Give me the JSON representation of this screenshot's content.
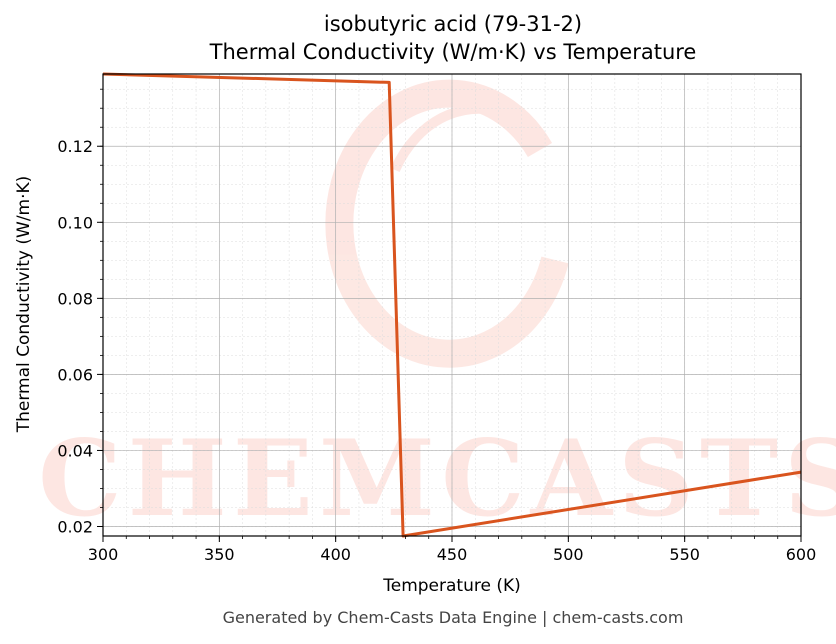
{
  "chart_data": {
    "type": "line",
    "title": "isobutyric acid (79-31-2)",
    "subtitle": "Thermal Conductivity (W/m·K) vs Temperature",
    "xlabel": "Temperature (K)",
    "ylabel": "Thermal Conductivity (W/m·K)",
    "xlim": [
      300,
      600
    ],
    "ylim": [
      0.0175,
      0.139
    ],
    "xticks": [
      300,
      350,
      400,
      450,
      500,
      550,
      600
    ],
    "xtick_labels": [
      "300",
      "350",
      "400",
      "450",
      "500",
      "550",
      "600"
    ],
    "yticks": [
      0.02,
      0.04,
      0.06,
      0.08,
      0.1,
      0.12
    ],
    "ytick_labels": [
      "0.02",
      "0.04",
      "0.06",
      "0.08",
      "0.10",
      "0.12"
    ],
    "grid": true,
    "line_color": "#d9541e",
    "series": [
      {
        "x": [
          300,
          423,
          429,
          600
        ],
        "y": [
          0.139,
          0.1368,
          0.0175,
          0.0343
        ]
      }
    ],
    "watermark": "CHEMCASTS"
  },
  "footer": "Generated by Chem-Casts Data Engine | chem-casts.com"
}
